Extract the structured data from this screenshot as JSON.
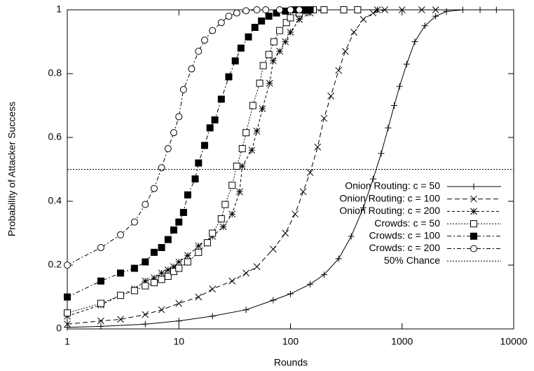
{
  "chart_data": {
    "type": "line",
    "x_label": "Rounds",
    "y_label": "Probability of Attacker Success",
    "log_x": true,
    "xlim": [
      1,
      10000
    ],
    "xticks": [
      1,
      10,
      100,
      1000,
      10000
    ],
    "ylim": [
      0,
      1
    ],
    "yticks": [
      0,
      0.2,
      0.4,
      0.6,
      0.8,
      1
    ],
    "grid": false,
    "legend": "right",
    "series": [
      {
        "name": "Onion Routing: c = 50",
        "color": "#000000",
        "marker": "plus",
        "dash": "solid",
        "x": [
          1,
          2,
          5,
          10,
          20,
          40,
          70,
          100,
          150,
          200,
          270,
          350,
          450,
          550,
          650,
          750,
          850,
          950,
          1100,
          1300,
          1600,
          2000,
          2500,
          3500,
          5000,
          7000
        ],
        "values": [
          0.005,
          0.008,
          0.015,
          0.025,
          0.04,
          0.06,
          0.09,
          0.11,
          0.14,
          0.17,
          0.22,
          0.29,
          0.38,
          0.47,
          0.55,
          0.63,
          0.7,
          0.76,
          0.83,
          0.9,
          0.95,
          0.98,
          0.995,
          1,
          1,
          1
        ]
      },
      {
        "name": "Onion Routing: c = 100",
        "color": "#000000",
        "marker": "cross",
        "dash": "dashed",
        "x": [
          1,
          2,
          3,
          5,
          7,
          10,
          15,
          20,
          30,
          40,
          50,
          70,
          90,
          110,
          130,
          150,
          175,
          200,
          230,
          270,
          310,
          370,
          450,
          550,
          700,
          1000,
          1500,
          2000
        ],
        "values": [
          0.015,
          0.025,
          0.03,
          0.045,
          0.06,
          0.08,
          0.1,
          0.125,
          0.15,
          0.175,
          0.195,
          0.25,
          0.3,
          0.36,
          0.43,
          0.49,
          0.57,
          0.66,
          0.73,
          0.81,
          0.87,
          0.93,
          0.97,
          0.99,
          1,
          1,
          1,
          1
        ]
      },
      {
        "name": "Onion Routing: c = 200",
        "color": "#000000",
        "marker": "star",
        "dash": "dashed-short",
        "x": [
          1,
          2,
          3,
          4,
          5,
          6,
          7,
          8,
          9,
          10,
          12,
          15,
          20,
          25,
          30,
          35,
          37,
          45,
          50,
          56,
          65,
          70,
          80,
          90,
          100,
          120,
          150,
          200,
          300,
          400,
          600
        ],
        "values": [
          0.04,
          0.075,
          0.105,
          0.125,
          0.15,
          0.16,
          0.175,
          0.185,
          0.195,
          0.21,
          0.23,
          0.26,
          0.29,
          0.32,
          0.36,
          0.43,
          0.51,
          0.56,
          0.62,
          0.69,
          0.77,
          0.84,
          0.87,
          0.9,
          0.93,
          0.97,
          0.99,
          1,
          1,
          1,
          1
        ]
      },
      {
        "name": "Crowds: c = 50",
        "color": "#000000",
        "marker": "square-open",
        "dash": "dotted",
        "x": [
          1,
          2,
          3,
          4,
          5,
          6,
          7,
          8,
          9,
          10,
          12,
          15,
          18,
          20,
          24,
          26,
          30,
          33,
          37,
          40,
          46,
          53,
          57,
          64,
          71,
          80,
          92,
          100,
          120,
          140,
          160,
          200,
          300,
          400
        ],
        "values": [
          0.05,
          0.08,
          0.105,
          0.12,
          0.135,
          0.145,
          0.155,
          0.165,
          0.18,
          0.19,
          0.21,
          0.24,
          0.27,
          0.3,
          0.345,
          0.39,
          0.45,
          0.51,
          0.565,
          0.615,
          0.7,
          0.77,
          0.825,
          0.86,
          0.9,
          0.935,
          0.96,
          0.975,
          0.99,
          0.997,
          1,
          1,
          1,
          1
        ]
      },
      {
        "name": "Crowds: c = 100",
        "color": "#000000",
        "marker": "square-filled",
        "dash": "dash-dot",
        "x": [
          1,
          2,
          3,
          4,
          5,
          6,
          7,
          8,
          9,
          10,
          11,
          12,
          14,
          15,
          17,
          19,
          21,
          24,
          28,
          32,
          36,
          42,
          48,
          55,
          64,
          75,
          90,
          110,
          130,
          150
        ],
        "values": [
          0.1,
          0.15,
          0.175,
          0.19,
          0.21,
          0.24,
          0.255,
          0.28,
          0.31,
          0.335,
          0.365,
          0.42,
          0.47,
          0.52,
          0.575,
          0.63,
          0.655,
          0.72,
          0.79,
          0.84,
          0.88,
          0.915,
          0.945,
          0.965,
          0.98,
          0.99,
          0.996,
          1,
          1,
          1
        ]
      },
      {
        "name": "Crowds: c = 200",
        "color": "#000000",
        "marker": "circle-open",
        "dash": "dash-dot",
        "x": [
          1,
          2,
          3,
          4,
          5,
          6,
          7,
          8,
          9,
          10,
          11,
          13,
          15,
          17,
          20,
          24,
          28,
          33,
          40,
          50,
          60,
          80,
          100,
          120
        ],
        "values": [
          0.2,
          0.255,
          0.295,
          0.335,
          0.39,
          0.44,
          0.505,
          0.565,
          0.615,
          0.665,
          0.75,
          0.815,
          0.87,
          0.905,
          0.935,
          0.96,
          0.98,
          0.99,
          0.997,
          1,
          1,
          1,
          1,
          1
        ]
      },
      {
        "name": "50% Chance",
        "color": "#000000",
        "marker": "none",
        "dash": "dotted",
        "x": [
          1,
          10000
        ],
        "values": [
          0.5,
          0.5
        ]
      }
    ]
  }
}
